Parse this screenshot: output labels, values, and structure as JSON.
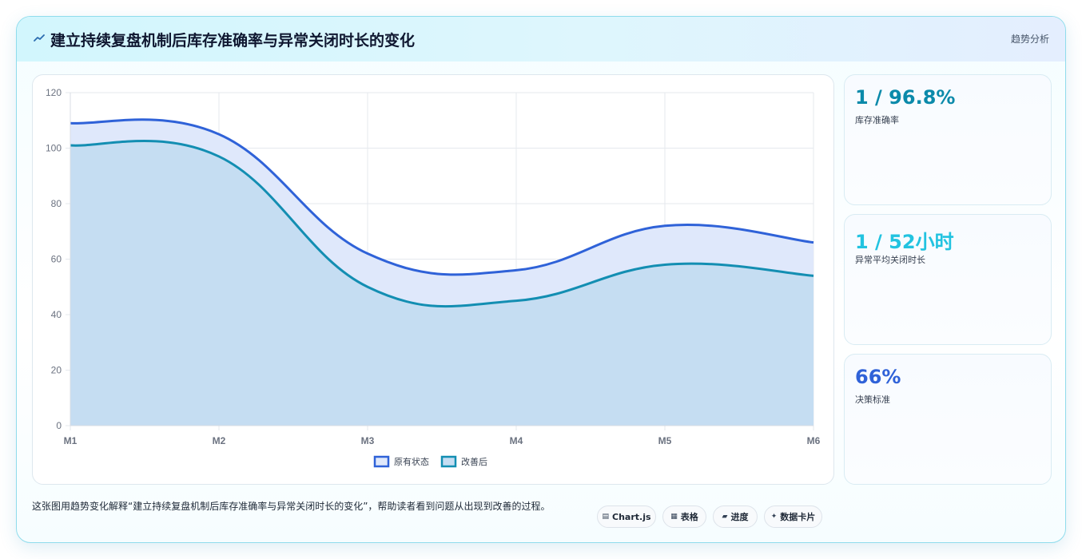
{
  "header": {
    "title": "建立持续复盘机制后库存准确率与异常关闭时长的变化",
    "tag": "趋势分析",
    "icon": "trend-line-icon"
  },
  "chart_data": {
    "type": "line",
    "categories": [
      "M1",
      "M2",
      "M3",
      "M4",
      "M5",
      "M6"
    ],
    "series": [
      {
        "name": "原有状态",
        "values": [
          109,
          105,
          62,
          56,
          72,
          66
        ],
        "color": "#2f62d8",
        "fill": "#dfe8fb"
      },
      {
        "name": "改善后",
        "values": [
          101,
          97,
          50,
          45,
          58,
          54
        ],
        "color": "#138eb2",
        "fill": "#c5ddf2"
      }
    ],
    "ylim": [
      0,
      120
    ],
    "yticks": [
      0,
      20,
      40,
      60,
      80,
      100,
      120
    ],
    "grid": true,
    "legend_position": "bottom",
    "filled": true
  },
  "stats": [
    {
      "value": "1 / 96.8%",
      "label": "库存准确率",
      "color": "#0b8aaa"
    },
    {
      "value": "1 / 52小时",
      "label": "异常平均关闭时长",
      "color": "#22c3e0"
    },
    {
      "value": "66%",
      "label": "决策标准",
      "color": "#2f62d8"
    }
  ],
  "footer": {
    "text": "这张图用趋势变化解释“建立持续复盘机制后库存准确率与异常关闭时长的变化”，帮助读者看到问题从出现到改善的过程。"
  },
  "pills": [
    {
      "icon": "▤",
      "label": "Chart.js",
      "icon_name": "chart-icon"
    },
    {
      "icon": "▦",
      "label": "表格",
      "icon_name": "table-icon"
    },
    {
      "icon": "▰",
      "label": "进度",
      "icon_name": "progress-icon"
    },
    {
      "icon": "✦",
      "label": "数据卡片",
      "icon_name": "sparkle-icon"
    }
  ]
}
